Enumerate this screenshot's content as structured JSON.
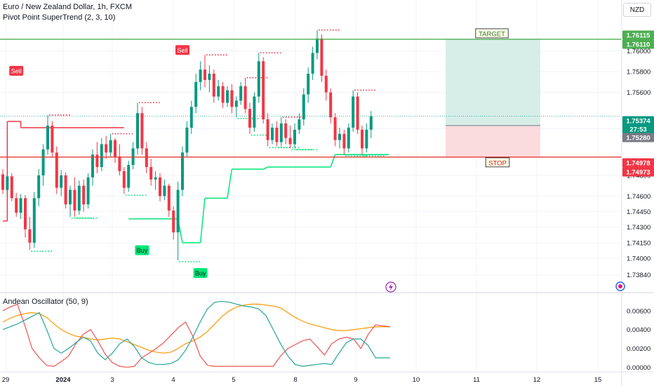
{
  "header": {
    "title": "Euro / New Zealand Dollar, 1h, FXCM",
    "indicator": "Pivot Point SuperTrend (2, 3, 10)",
    "currency": "NZD"
  },
  "oscillator": {
    "title": "Andean Oscillator (50, 9)"
  },
  "colors": {
    "up": "#089981",
    "down": "#f23645",
    "supertrend_up": "#00e676",
    "supertrend_down": "#f23645",
    "target_line": "#4caf50",
    "stop_line": "#e53935",
    "target_zone": "#d7eee8",
    "stop_zone": "#fadbde",
    "osc_bull": "#ff9800",
    "osc_bear": "#ef5350",
    "osc_signal": "#26a69a"
  },
  "chart_data": [
    {
      "type": "candlestick",
      "title": "Euro / New Zealand Dollar, 1h, FXCM",
      "x_tick_labels": [
        "29",
        "2024",
        "3",
        "4",
        "5",
        "8",
        "9",
        "10",
        "11",
        "12",
        "15"
      ],
      "y_tick_labels": [
        "1.76000",
        "1.75800",
        "1.75600",
        "1.75250",
        "1.74800",
        "1.74600",
        "1.74450",
        "1.74300",
        "1.74150",
        "1.74000",
        "1.73840"
      ],
      "ylim": [
        1.7375,
        1.7622
      ],
      "price_labels": [
        {
          "value": "1.76115",
          "kind": "target"
        },
        {
          "value": "1.76110",
          "kind": "target"
        },
        {
          "value": "1.75374",
          "kind": "last"
        },
        {
          "value": "27:53",
          "kind": "countdown"
        },
        {
          "value": "1.75280",
          "kind": "entry"
        },
        {
          "value": "1.74978",
          "kind": "stop"
        },
        {
          "value": "1.74973",
          "kind": "stop"
        }
      ],
      "levels": {
        "target": 1.76112,
        "entry": 1.7528,
        "stop": 1.74976
      },
      "annotations": [
        {
          "text": "TARGET",
          "kind": "target"
        },
        {
          "text": "STOP",
          "kind": "stop"
        },
        {
          "text": "Sell",
          "kind": "sell"
        },
        {
          "text": "Sell",
          "kind": "sell"
        },
        {
          "text": "Buy",
          "kind": "buy"
        },
        {
          "text": "Buy",
          "kind": "buy"
        }
      ],
      "candles": [
        {
          "o": 1.7481,
          "h": 1.7486,
          "l": 1.7462,
          "c": 1.7466
        },
        {
          "o": 1.7466,
          "h": 1.7484,
          "l": 1.746,
          "c": 1.7479
        },
        {
          "o": 1.7479,
          "h": 1.7482,
          "l": 1.7455,
          "c": 1.7458
        },
        {
          "o": 1.7458,
          "h": 1.7463,
          "l": 1.744,
          "c": 1.7444
        },
        {
          "o": 1.7444,
          "h": 1.7462,
          "l": 1.7438,
          "c": 1.7458
        },
        {
          "o": 1.7458,
          "h": 1.7461,
          "l": 1.742,
          "c": 1.7428
        },
        {
          "o": 1.7428,
          "h": 1.744,
          "l": 1.7408,
          "c": 1.7415
        },
        {
          "o": 1.7415,
          "h": 1.7464,
          "l": 1.741,
          "c": 1.7458
        },
        {
          "o": 1.7458,
          "h": 1.7486,
          "l": 1.745,
          "c": 1.748
        },
        {
          "o": 1.748,
          "h": 1.751,
          "l": 1.747,
          "c": 1.7505
        },
        {
          "o": 1.7505,
          "h": 1.7538,
          "l": 1.75,
          "c": 1.7528
        },
        {
          "o": 1.7528,
          "h": 1.7532,
          "l": 1.7498,
          "c": 1.7502
        },
        {
          "o": 1.7502,
          "h": 1.7508,
          "l": 1.7462,
          "c": 1.7468
        },
        {
          "o": 1.7468,
          "h": 1.7485,
          "l": 1.746,
          "c": 1.748
        },
        {
          "o": 1.748,
          "h": 1.7483,
          "l": 1.7448,
          "c": 1.7452
        },
        {
          "o": 1.7452,
          "h": 1.747,
          "l": 1.744,
          "c": 1.7466
        },
        {
          "o": 1.7466,
          "h": 1.7478,
          "l": 1.744,
          "c": 1.7446
        },
        {
          "o": 1.7446,
          "h": 1.7475,
          "l": 1.7442,
          "c": 1.747
        },
        {
          "o": 1.747,
          "h": 1.7476,
          "l": 1.7445,
          "c": 1.7452
        },
        {
          "o": 1.7452,
          "h": 1.7482,
          "l": 1.7448,
          "c": 1.7478
        },
        {
          "o": 1.7478,
          "h": 1.7505,
          "l": 1.747,
          "c": 1.75
        },
        {
          "o": 1.75,
          "h": 1.7512,
          "l": 1.7482,
          "c": 1.7488
        },
        {
          "o": 1.7488,
          "h": 1.7516,
          "l": 1.7484,
          "c": 1.751
        },
        {
          "o": 1.751,
          "h": 1.7518,
          "l": 1.7496,
          "c": 1.7502
        },
        {
          "o": 1.7502,
          "h": 1.752,
          "l": 1.7498,
          "c": 1.7514
        },
        {
          "o": 1.7514,
          "h": 1.7516,
          "l": 1.7492,
          "c": 1.7498
        },
        {
          "o": 1.7498,
          "h": 1.751,
          "l": 1.748,
          "c": 1.7484
        },
        {
          "o": 1.7484,
          "h": 1.7488,
          "l": 1.7462,
          "c": 1.7468
        },
        {
          "o": 1.7468,
          "h": 1.7494,
          "l": 1.7464,
          "c": 1.749
        },
        {
          "o": 1.749,
          "h": 1.7512,
          "l": 1.7486,
          "c": 1.7506
        },
        {
          "o": 1.7506,
          "h": 1.755,
          "l": 1.75,
          "c": 1.754
        },
        {
          "o": 1.754,
          "h": 1.7546,
          "l": 1.75,
          "c": 1.7506
        },
        {
          "o": 1.7506,
          "h": 1.7512,
          "l": 1.7482,
          "c": 1.7488
        },
        {
          "o": 1.7488,
          "h": 1.7496,
          "l": 1.747,
          "c": 1.7476
        },
        {
          "o": 1.7476,
          "h": 1.7484,
          "l": 1.7466,
          "c": 1.7478
        },
        {
          "o": 1.7478,
          "h": 1.7482,
          "l": 1.7455,
          "c": 1.746
        },
        {
          "o": 1.746,
          "h": 1.7476,
          "l": 1.7456,
          "c": 1.747
        },
        {
          "o": 1.747,
          "h": 1.7472,
          "l": 1.744,
          "c": 1.7446
        },
        {
          "o": 1.7446,
          "h": 1.745,
          "l": 1.7418,
          "c": 1.7425
        },
        {
          "o": 1.7425,
          "h": 1.7474,
          "l": 1.7398,
          "c": 1.7466
        },
        {
          "o": 1.7466,
          "h": 1.7508,
          "l": 1.746,
          "c": 1.7502
        },
        {
          "o": 1.7502,
          "h": 1.7532,
          "l": 1.7498,
          "c": 1.7526
        },
        {
          "o": 1.7526,
          "h": 1.7552,
          "l": 1.752,
          "c": 1.7546
        },
        {
          "o": 1.7546,
          "h": 1.7578,
          "l": 1.754,
          "c": 1.757
        },
        {
          "o": 1.757,
          "h": 1.759,
          "l": 1.7562,
          "c": 1.7582
        },
        {
          "o": 1.7582,
          "h": 1.7596,
          "l": 1.7565,
          "c": 1.7572
        },
        {
          "o": 1.7572,
          "h": 1.7586,
          "l": 1.756,
          "c": 1.7578
        },
        {
          "o": 1.7578,
          "h": 1.7582,
          "l": 1.755,
          "c": 1.7556
        },
        {
          "o": 1.7556,
          "h": 1.7572,
          "l": 1.7552,
          "c": 1.7566
        },
        {
          "o": 1.7566,
          "h": 1.757,
          "l": 1.7545,
          "c": 1.755
        },
        {
          "o": 1.755,
          "h": 1.7566,
          "l": 1.7546,
          "c": 1.7562
        },
        {
          "o": 1.7562,
          "h": 1.7568,
          "l": 1.754,
          "c": 1.7546
        },
        {
          "o": 1.7546,
          "h": 1.7556,
          "l": 1.7536,
          "c": 1.7552
        },
        {
          "o": 1.7552,
          "h": 1.757,
          "l": 1.7548,
          "c": 1.7566
        },
        {
          "o": 1.7566,
          "h": 1.7574,
          "l": 1.754,
          "c": 1.7544
        },
        {
          "o": 1.7544,
          "h": 1.755,
          "l": 1.752,
          "c": 1.7526
        },
        {
          "o": 1.7526,
          "h": 1.756,
          "l": 1.7522,
          "c": 1.7556
        },
        {
          "o": 1.7556,
          "h": 1.7598,
          "l": 1.755,
          "c": 1.759
        },
        {
          "o": 1.759,
          "h": 1.7594,
          "l": 1.753,
          "c": 1.7534
        },
        {
          "o": 1.7534,
          "h": 1.754,
          "l": 1.7508,
          "c": 1.7514
        },
        {
          "o": 1.7514,
          "h": 1.753,
          "l": 1.751,
          "c": 1.7526
        },
        {
          "o": 1.7526,
          "h": 1.7532,
          "l": 1.7508,
          "c": 1.7512
        },
        {
          "o": 1.7512,
          "h": 1.7536,
          "l": 1.7508,
          "c": 1.753
        },
        {
          "o": 1.753,
          "h": 1.7534,
          "l": 1.751,
          "c": 1.7516
        },
        {
          "o": 1.7516,
          "h": 1.7528,
          "l": 1.7506,
          "c": 1.751
        },
        {
          "o": 1.751,
          "h": 1.753,
          "l": 1.7506,
          "c": 1.7524
        },
        {
          "o": 1.7524,
          "h": 1.754,
          "l": 1.752,
          "c": 1.7534
        },
        {
          "o": 1.7534,
          "h": 1.7564,
          "l": 1.7528,
          "c": 1.7558
        },
        {
          "o": 1.7558,
          "h": 1.7584,
          "l": 1.755,
          "c": 1.7578
        },
        {
          "o": 1.7578,
          "h": 1.7604,
          "l": 1.7572,
          "c": 1.7598
        },
        {
          "o": 1.7598,
          "h": 1.762,
          "l": 1.7592,
          "c": 1.7612
        },
        {
          "o": 1.7612,
          "h": 1.7616,
          "l": 1.757,
          "c": 1.7576
        },
        {
          "o": 1.7576,
          "h": 1.7582,
          "l": 1.7552,
          "c": 1.756
        },
        {
          "o": 1.756,
          "h": 1.7564,
          "l": 1.753,
          "c": 1.7536
        },
        {
          "o": 1.7536,
          "h": 1.754,
          "l": 1.7508,
          "c": 1.7514
        },
        {
          "o": 1.7514,
          "h": 1.7526,
          "l": 1.7506,
          "c": 1.752
        },
        {
          "o": 1.752,
          "h": 1.7524,
          "l": 1.75,
          "c": 1.7506
        },
        {
          "o": 1.7506,
          "h": 1.753,
          "l": 1.7502,
          "c": 1.7526
        },
        {
          "o": 1.7526,
          "h": 1.7562,
          "l": 1.7522,
          "c": 1.7556
        },
        {
          "o": 1.7556,
          "h": 1.756,
          "l": 1.752,
          "c": 1.7524
        },
        {
          "o": 1.7524,
          "h": 1.7528,
          "l": 1.75,
          "c": 1.7506
        },
        {
          "o": 1.7506,
          "h": 1.753,
          "l": 1.7502,
          "c": 1.7524
        },
        {
          "o": 1.7524,
          "h": 1.7542,
          "l": 1.7516,
          "c": 1.7537
        }
      ],
      "supertrend": [
        {
          "from": 0,
          "to": 1,
          "value": 1.7436,
          "trend": "down"
        },
        {
          "from": 1,
          "to": 4,
          "value": 1.7532,
          "trend": "down"
        },
        {
          "from": 4,
          "to": 14,
          "value": 1.7526,
          "trend": "down"
        },
        {
          "from": 15,
          "to": 27,
          "value": 1.7526,
          "trend": "down"
        },
        {
          "from": 28,
          "to": 39,
          "value": 1.7438,
          "trend": "up"
        },
        {
          "from": 40,
          "to": 44,
          "value": 1.7415,
          "trend": "up"
        },
        {
          "from": 45,
          "to": 50,
          "value": 1.7458,
          "trend": "up"
        },
        {
          "from": 51,
          "to": 58,
          "value": 1.7486,
          "trend": "up"
        },
        {
          "from": 59,
          "to": 73,
          "value": 1.7488,
          "trend": "up"
        },
        {
          "from": 74,
          "to": 86,
          "value": 1.75,
          "trend": "up"
        }
      ]
    },
    {
      "type": "line",
      "title": "Andean Oscillator (50, 9)",
      "y_tick_labels": [
        "0.00600",
        "0.00400",
        "0.00200",
        "0.00000"
      ],
      "ylim": [
        -0.0002,
        0.0071
      ],
      "series": [
        {
          "name": "",
          "color": "#ff9800",
          "values": [
            0.0048,
            0.0052,
            0.0055,
            0.0057,
            0.0058,
            0.0057,
            0.0053,
            0.0046,
            0.004,
            0.0036,
            0.0033,
            0.0032,
            0.003,
            0.0029,
            0.003,
            0.0031,
            0.003,
            0.0027,
            0.0024,
            0.0021,
            0.0018,
            0.0016,
            0.0015,
            0.0016,
            0.002,
            0.0025,
            0.0028,
            0.0032,
            0.0038,
            0.0046,
            0.0054,
            0.006,
            0.0064,
            0.0066,
            0.0067,
            0.0067,
            0.0066,
            0.0065,
            0.0063,
            0.0058,
            0.0053,
            0.0049,
            0.0046,
            0.0044,
            0.0042,
            0.004,
            0.0039,
            0.0039,
            0.004,
            0.0041,
            0.0042,
            0.0043,
            0.0043,
            0.0043
          ]
        },
        {
          "name": "",
          "color": "#ef5350",
          "values": [
            0.006,
            0.0064,
            0.0067,
            0.0045,
            0.002,
            0.001,
            0.0002,
            0.0001,
            0.0006,
            0.0012,
            0.0025,
            0.0035,
            0.004,
            0.0028,
            0.0014,
            0.0005,
            0.0001,
            0.0,
            0.0001,
            0.001,
            0.0015,
            0.002,
            0.0026,
            0.0034,
            0.0042,
            0.0048,
            0.0033,
            0.0012,
            0.0002,
            0.0001,
            0.0001,
            0.0001,
            0.0001,
            0.0001,
            0.0001,
            0.0001,
            0.0001,
            0.0001,
            0.0012,
            0.002,
            0.0024,
            0.0028,
            0.003,
            0.0022,
            0.0013,
            0.0025,
            0.003,
            0.0032,
            0.003,
            0.002,
            0.0035,
            0.0045,
            0.0044,
            0.0043
          ]
        },
        {
          "name": "",
          "color": "#26a69a",
          "values": [
            0.004,
            0.0043,
            0.0046,
            0.005,
            0.0054,
            0.0058,
            0.004,
            0.002,
            0.0015,
            0.002,
            0.0026,
            0.0032,
            0.0028,
            0.0015,
            0.0008,
            0.0015,
            0.0025,
            0.003,
            0.0022,
            0.001,
            0.0005,
            0.0003,
            0.0003,
            0.0004,
            0.0008,
            0.0018,
            0.0032,
            0.0048,
            0.0062,
            0.0069,
            0.007,
            0.0069,
            0.0067,
            0.0065,
            0.0064,
            0.0062,
            0.0055,
            0.004,
            0.0025,
            0.0012,
            0.0003,
            0.0001,
            0.0002,
            0.0003,
            0.0004,
            0.0003,
            0.0015,
            0.0026,
            0.003,
            0.003,
            0.0023,
            0.001,
            0.001,
            0.001
          ]
        }
      ]
    }
  ]
}
